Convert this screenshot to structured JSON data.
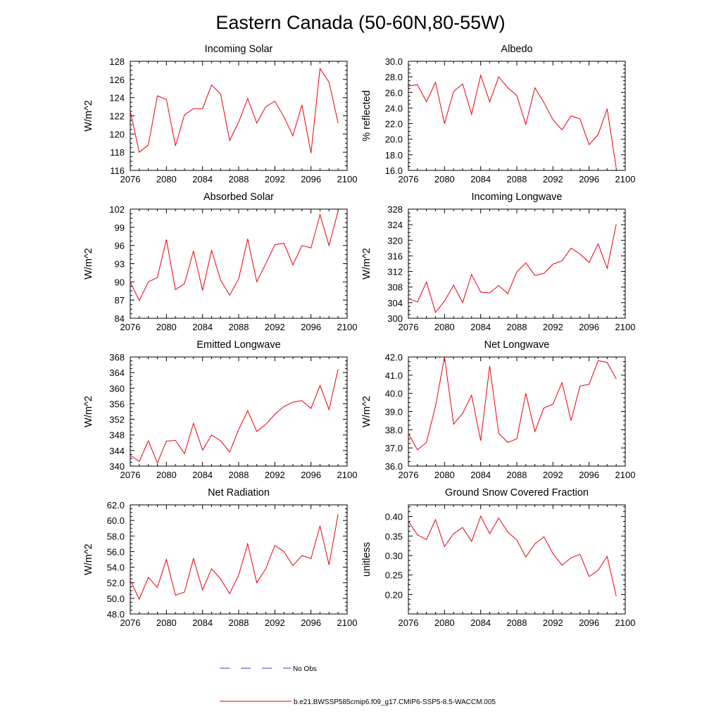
{
  "figure": {
    "title": "Eastern Canada (50-60N,80-55W)",
    "series_color": "#e8000b",
    "legend": [
      {
        "label": "No Obs",
        "style": "dashed",
        "color": "#3b3bd6"
      },
      {
        "label": "b.e21.BWSSP585cmip6.f09_g17.CMIP6-SSP5-8.5-WACCM.005",
        "style": "solid",
        "color": "#e8000b"
      }
    ]
  },
  "chart_data": [
    {
      "type": "line",
      "title": "Incoming Solar",
      "xlabel": "",
      "ylabel": "W/m^2",
      "xlim": [
        2076,
        2100
      ],
      "ylim": [
        116,
        128
      ],
      "xticks": [
        "2076",
        "2080",
        "2084",
        "2088",
        "2092",
        "2096",
        "2100"
      ],
      "yticks": [
        "116",
        "118",
        "120",
        "122",
        "124",
        "126",
        "128"
      ],
      "x": [
        2076,
        2077,
        2078,
        2079,
        2080,
        2081,
        2082,
        2083,
        2084,
        2085,
        2086,
        2087,
        2088,
        2089,
        2090,
        2091,
        2092,
        2093,
        2094,
        2095,
        2096,
        2097,
        2098,
        2099
      ],
      "series": [
        {
          "name": "b.e21.BWSSP585cmip6.f09_g17.CMIP6-SSP5-8.5-WACCM.005",
          "values": [
            122.5,
            118.0,
            118.8,
            124.2,
            123.8,
            118.7,
            122.1,
            122.8,
            122.8,
            125.4,
            124.4,
            119.3,
            121.3,
            123.9,
            121.2,
            123.0,
            123.6,
            121.9,
            119.8,
            123.2,
            117.9,
            127.2,
            125.7,
            121.2
          ]
        }
      ]
    },
    {
      "type": "line",
      "title": "Albedo",
      "xlabel": "",
      "ylabel": "% reflected",
      "xlim": [
        2076,
        2100
      ],
      "ylim": [
        16,
        30
      ],
      "xticks": [
        "2076",
        "2080",
        "2084",
        "2088",
        "2092",
        "2096",
        "2100"
      ],
      "yticks": [
        "16.0",
        "18.0",
        "20.0",
        "22.0",
        "24.0",
        "26.0",
        "28.0",
        "30.0"
      ],
      "x": [
        2076,
        2077,
        2078,
        2079,
        2080,
        2081,
        2082,
        2083,
        2084,
        2085,
        2086,
        2087,
        2088,
        2089,
        2090,
        2091,
        2092,
        2093,
        2094,
        2095,
        2096,
        2097,
        2098,
        2099
      ],
      "series": [
        {
          "name": "b.e21.BWSSP585cmip6.f09_g17.CMIP6-SSP5-8.5-WACCM.005",
          "values": [
            26.8,
            27.0,
            24.8,
            27.3,
            22.0,
            26.1,
            27.1,
            23.2,
            28.2,
            24.8,
            28.0,
            26.6,
            25.6,
            21.9,
            26.6,
            24.7,
            22.5,
            21.2,
            23.0,
            22.6,
            19.3,
            20.6,
            23.9,
            16.3
          ]
        }
      ]
    },
    {
      "type": "line",
      "title": "Absorbed Solar",
      "xlabel": "",
      "ylabel": "W/m^2",
      "xlim": [
        2076,
        2100
      ],
      "ylim": [
        84,
        102
      ],
      "xticks": [
        "2076",
        "2080",
        "2084",
        "2088",
        "2092",
        "2096",
        "2100"
      ],
      "yticks": [
        "84",
        "87",
        "90",
        "93",
        "96",
        "99",
        "102"
      ],
      "x": [
        2076,
        2077,
        2078,
        2079,
        2080,
        2081,
        2082,
        2083,
        2084,
        2085,
        2086,
        2087,
        2088,
        2089,
        2090,
        2091,
        2092,
        2093,
        2094,
        2095,
        2096,
        2097,
        2098,
        2099
      ],
      "series": [
        {
          "name": "b.e21.BWSSP585cmip6.f09_g17.CMIP6-SSP5-8.5-WACCM.005",
          "values": [
            90.0,
            86.9,
            90.0,
            90.7,
            97.0,
            88.7,
            89.7,
            95.1,
            88.6,
            95.2,
            90.3,
            87.8,
            90.5,
            97.1,
            90.0,
            93.0,
            96.1,
            96.4,
            92.8,
            96.0,
            95.6,
            101.1,
            96.0,
            101.7
          ]
        }
      ]
    },
    {
      "type": "line",
      "title": "Incoming Longwave",
      "xlabel": "",
      "ylabel": "W/m^2",
      "xlim": [
        2076,
        2100
      ],
      "ylim": [
        300,
        328
      ],
      "xticks": [
        "2076",
        "2080",
        "2084",
        "2088",
        "2092",
        "2096",
        "2100"
      ],
      "yticks": [
        "300",
        "304",
        "308",
        "312",
        "316",
        "320",
        "324",
        "328"
      ],
      "x": [
        2076,
        2077,
        2078,
        2079,
        2080,
        2081,
        2082,
        2083,
        2084,
        2085,
        2086,
        2087,
        2088,
        2089,
        2090,
        2091,
        2092,
        2093,
        2094,
        2095,
        2096,
        2097,
        2098,
        2099
      ],
      "series": [
        {
          "name": "b.e21.BWSSP585cmip6.f09_g17.CMIP6-SSP5-8.5-WACCM.005",
          "values": [
            305.0,
            304.2,
            309.3,
            301.5,
            304.4,
            308.5,
            304.0,
            311.2,
            306.7,
            306.5,
            308.4,
            306.3,
            311.9,
            314.2,
            311.0,
            311.5,
            313.9,
            314.7,
            318.0,
            316.5,
            314.3,
            319.1,
            312.8,
            324.1
          ]
        }
      ]
    },
    {
      "type": "line",
      "title": "Emitted Longwave",
      "xlabel": "",
      "ylabel": "W/m^2",
      "xlim": [
        2076,
        2100
      ],
      "ylim": [
        340,
        368
      ],
      "xticks": [
        "2076",
        "2080",
        "2084",
        "2088",
        "2092",
        "2096",
        "2100"
      ],
      "yticks": [
        "340",
        "344",
        "348",
        "352",
        "356",
        "360",
        "364",
        "368"
      ],
      "x": [
        2076,
        2077,
        2078,
        2079,
        2080,
        2081,
        2082,
        2083,
        2084,
        2085,
        2086,
        2087,
        2088,
        2089,
        2090,
        2091,
        2092,
        2093,
        2094,
        2095,
        2096,
        2097,
        2098,
        2099
      ],
      "series": [
        {
          "name": "b.e21.BWSSP585cmip6.f09_g17.CMIP6-SSP5-8.5-WACCM.005",
          "values": [
            342.8,
            341.2,
            346.5,
            340.8,
            346.4,
            346.6,
            343.2,
            351.0,
            344.1,
            348.0,
            346.5,
            343.6,
            349.4,
            354.2,
            348.9,
            350.7,
            353.3,
            355.3,
            356.4,
            356.8,
            354.8,
            360.7,
            354.5,
            364.9
          ]
        }
      ]
    },
    {
      "type": "line",
      "title": "Net Longwave",
      "xlabel": "",
      "ylabel": "W/m^2",
      "xlim": [
        2076,
        2100
      ],
      "ylim": [
        36,
        42
      ],
      "xticks": [
        "2076",
        "2080",
        "2084",
        "2088",
        "2092",
        "2096",
        "2100"
      ],
      "yticks": [
        "36.0",
        "37.0",
        "38.0",
        "39.0",
        "40.0",
        "41.0",
        "42.0"
      ],
      "x": [
        2076,
        2077,
        2078,
        2079,
        2080,
        2081,
        2082,
        2083,
        2084,
        2085,
        2086,
        2087,
        2088,
        2089,
        2090,
        2091,
        2092,
        2093,
        2094,
        2095,
        2096,
        2097,
        2098,
        2099
      ],
      "series": [
        {
          "name": "b.e21.BWSSP585cmip6.f09_g17.CMIP6-SSP5-8.5-WACCM.005",
          "values": [
            37.8,
            36.9,
            37.3,
            39.3,
            42.0,
            38.3,
            38.9,
            39.9,
            37.4,
            41.5,
            37.8,
            37.3,
            37.5,
            40.0,
            37.9,
            39.2,
            39.4,
            40.6,
            38.5,
            40.4,
            40.5,
            41.8,
            41.7,
            40.8
          ]
        }
      ]
    },
    {
      "type": "line",
      "title": "Net Radiation",
      "xlabel": "",
      "ylabel": "W/m^2",
      "xlim": [
        2076,
        2100
      ],
      "ylim": [
        48,
        62
      ],
      "xticks": [
        "2076",
        "2080",
        "2084",
        "2088",
        "2092",
        "2096",
        "2100"
      ],
      "yticks": [
        "48.0",
        "50.0",
        "52.0",
        "54.0",
        "56.0",
        "58.0",
        "60.0",
        "62.0"
      ],
      "x": [
        2076,
        2077,
        2078,
        2079,
        2080,
        2081,
        2082,
        2083,
        2084,
        2085,
        2086,
        2087,
        2088,
        2089,
        2090,
        2091,
        2092,
        2093,
        2094,
        2095,
        2096,
        2097,
        2098,
        2099
      ],
      "series": [
        {
          "name": "b.e21.BWSSP585cmip6.f09_g17.CMIP6-SSP5-8.5-WACCM.005",
          "values": [
            52.3,
            49.9,
            52.7,
            51.4,
            55.0,
            50.4,
            50.8,
            55.1,
            51.1,
            53.8,
            52.5,
            50.6,
            53.0,
            57.0,
            52.0,
            53.8,
            56.8,
            56.0,
            54.2,
            55.5,
            55.1,
            59.3,
            54.3,
            60.8
          ]
        }
      ]
    },
    {
      "type": "line",
      "title": "Ground Snow Covered Fraction",
      "xlabel": "",
      "ylabel": "unitless",
      "xlim": [
        2076,
        2100
      ],
      "ylim": [
        0.15,
        0.43
      ],
      "xticks": [
        "2076",
        "2080",
        "2084",
        "2088",
        "2092",
        "2096",
        "2100"
      ],
      "yticks": [
        "0.20",
        "0.25",
        "0.30",
        "0.35",
        "0.40"
      ],
      "x": [
        2076,
        2077,
        2078,
        2079,
        2080,
        2081,
        2082,
        2083,
        2084,
        2085,
        2086,
        2087,
        2088,
        2089,
        2090,
        2091,
        2092,
        2093,
        2094,
        2095,
        2096,
        2097,
        2098,
        2099
      ],
      "series": [
        {
          "name": "b.e21.BWSSP585cmip6.f09_g17.CMIP6-SSP5-8.5-WACCM.005",
          "values": [
            0.388,
            0.353,
            0.341,
            0.392,
            0.323,
            0.356,
            0.372,
            0.336,
            0.401,
            0.356,
            0.396,
            0.36,
            0.34,
            0.296,
            0.33,
            0.348,
            0.305,
            0.275,
            0.294,
            0.303,
            0.246,
            0.262,
            0.298,
            0.196
          ]
        }
      ]
    }
  ]
}
